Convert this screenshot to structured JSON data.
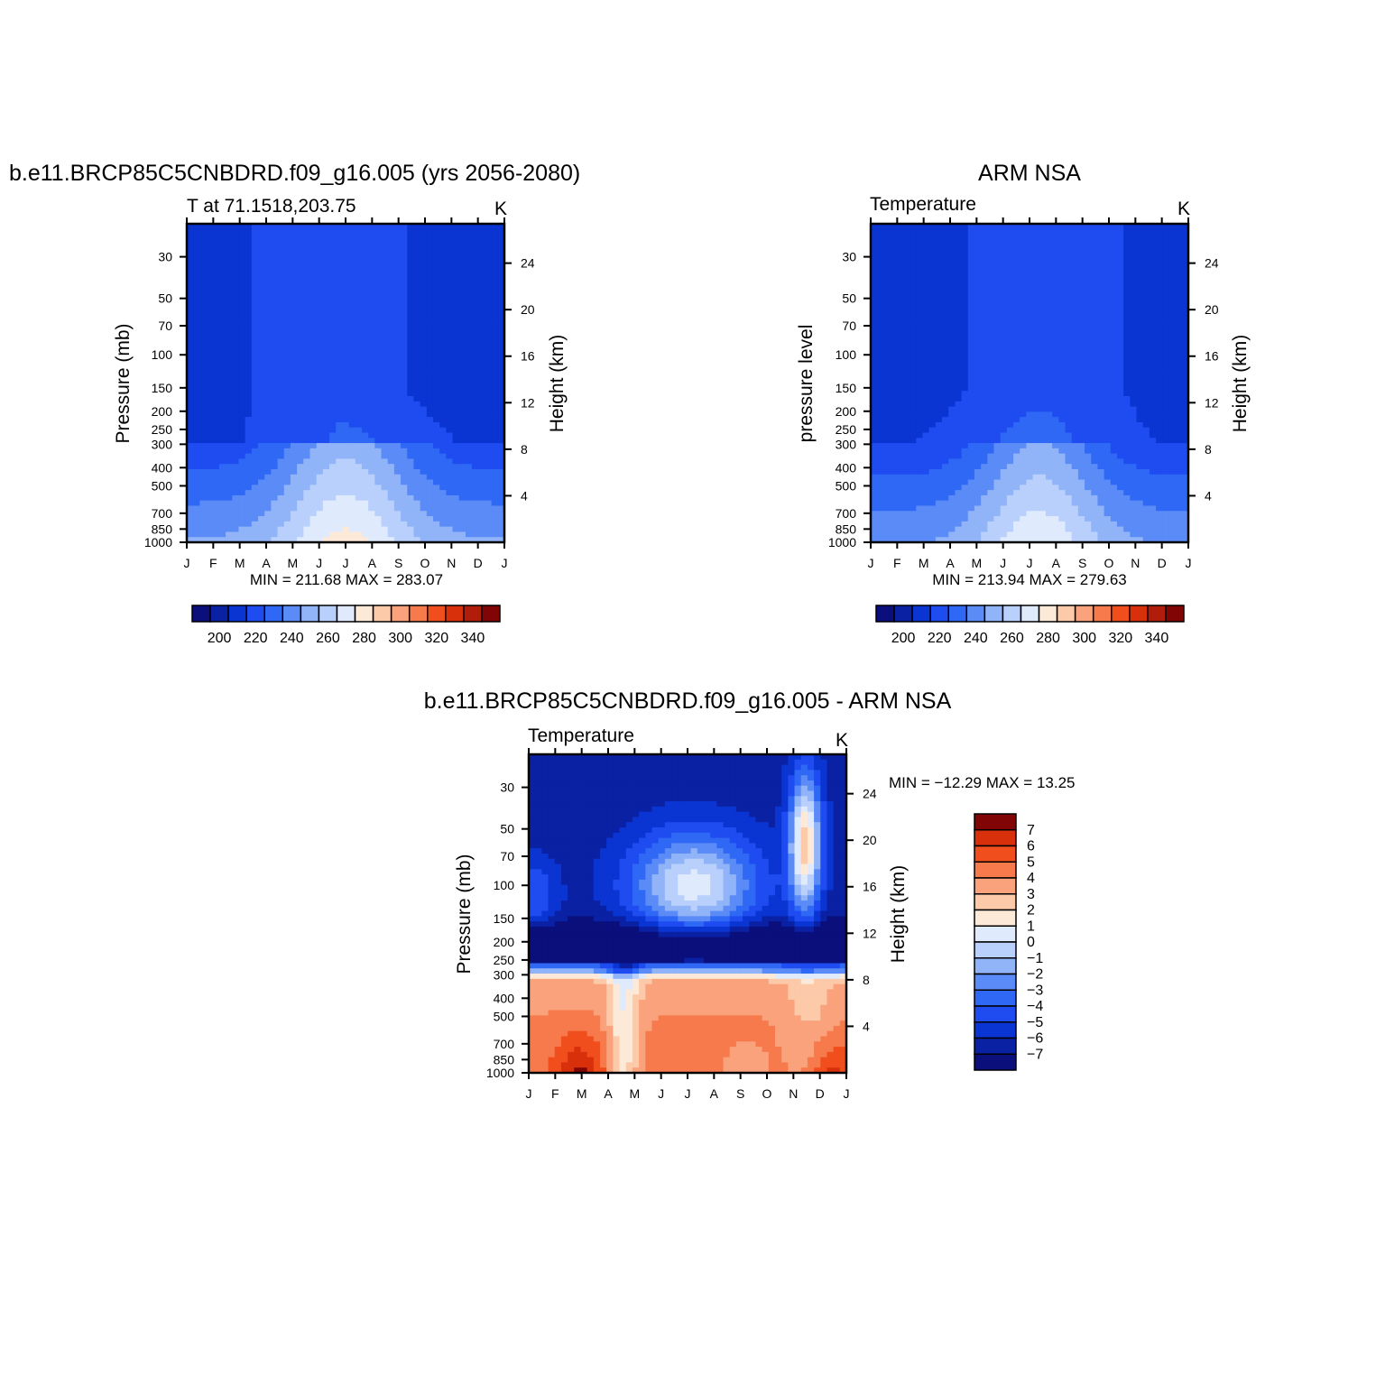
{
  "chart_data": [
    {
      "type": "contour",
      "title": "b.e11.BRCP85C5CNBDRD.f09_g16.005 (yrs 2056-2080)",
      "left_subtitle": "T at 71.1518,203.75",
      "right_subtitle": "K",
      "ylabel_left": "Pressure (mb)",
      "ylabel_right": "Height (km)",
      "x_ticks": [
        "J",
        "F",
        "M",
        "A",
        "M",
        "J",
        "J",
        "A",
        "S",
        "O",
        "N",
        "D",
        "J"
      ],
      "pressure_ticks": [
        30,
        50,
        70,
        100,
        150,
        200,
        250,
        300,
        400,
        500,
        700,
        850,
        1000
      ],
      "height_ticks": [
        24,
        20,
        16,
        12,
        8,
        4
      ],
      "minmax_text": "MIN = 211.68 MAX = 283.07",
      "colorbar_labels": [
        200,
        220,
        240,
        260,
        280,
        300,
        320,
        340
      ],
      "levels": [
        190,
        200,
        210,
        220,
        230,
        240,
        250,
        260,
        270,
        280,
        290,
        300,
        310,
        320,
        330,
        340,
        350
      ],
      "colors": [
        "#0a0f7c",
        "#0a21a4",
        "#0a35d2",
        "#1e4cf0",
        "#2f68f5",
        "#5a8bf7",
        "#91b4f8",
        "#b8d0fb",
        "#dfeafd",
        "#fde9d8",
        "#fcc9a9",
        "#f9a27c",
        "#f77a4d",
        "#f14e1d",
        "#d9300c",
        "#b01e0b",
        "#810505"
      ],
      "profile_jan": [
        227,
        225,
        220,
        216,
        213,
        214,
        216,
        220,
        228,
        236,
        248,
        252,
        253
      ]
    },
    {
      "type": "contour",
      "title": "ARM NSA",
      "left_subtitle": "Temperature",
      "right_subtitle": "K",
      "ylabel_left": "pressure level",
      "ylabel_right": "Height (km)",
      "x_ticks": [
        "J",
        "F",
        "M",
        "A",
        "M",
        "J",
        "J",
        "A",
        "S",
        "O",
        "N",
        "D",
        "J"
      ],
      "pressure_ticks": [
        30,
        50,
        70,
        100,
        150,
        200,
        250,
        300,
        400,
        500,
        700,
        850,
        1000
      ],
      "height_ticks": [
        24,
        20,
        16,
        12,
        8,
        4
      ],
      "minmax_text": "MIN = 213.94 MAX = 279.63",
      "colorbar_labels": [
        200,
        220,
        240,
        260,
        280,
        300,
        320,
        340
      ],
      "levels": [
        190,
        200,
        210,
        220,
        230,
        240,
        250,
        260,
        270,
        280,
        290,
        300,
        310,
        320,
        330,
        340,
        350
      ]
    },
    {
      "type": "contour",
      "title": "b.e11.BRCP85C5CNBDRD.f09_g16.005 - ARM NSA",
      "left_subtitle": "Temperature",
      "right_subtitle": "K",
      "ylabel_left": "Pressure (mb)",
      "ylabel_right": "Height (km)",
      "x_ticks": [
        "J",
        "F",
        "M",
        "A",
        "M",
        "J",
        "J",
        "A",
        "S",
        "O",
        "N",
        "D",
        "J"
      ],
      "pressure_ticks": [
        30,
        50,
        70,
        100,
        150,
        200,
        250,
        300,
        400,
        500,
        700,
        850,
        1000
      ],
      "height_ticks": [
        24,
        20,
        16,
        12,
        8,
        4
      ],
      "minmax_text": "MIN = −12.29 MAX =  13.25",
      "colorbar_labels": [
        "7",
        "6",
        "5",
        "4",
        "3",
        "2",
        "1",
        "0",
        "−1",
        "−2",
        "−3",
        "−4",
        "−5",
        "−6",
        "−7"
      ],
      "levels": [
        -8,
        -7,
        -6,
        -5,
        -4,
        -3,
        -2,
        -1,
        0,
        1,
        2,
        3,
        4,
        5,
        6,
        7,
        8
      ],
      "colors": [
        "#0a0f7c",
        "#0a21a4",
        "#0a35d2",
        "#1e4cf0",
        "#2f68f5",
        "#5a8bf7",
        "#91b4f8",
        "#b8d0fb",
        "#dfeafd",
        "#fde9d8",
        "#fcc9a9",
        "#f9a27c",
        "#f77a4d",
        "#f14e1d",
        "#d9300c",
        "#810505"
      ]
    }
  ]
}
